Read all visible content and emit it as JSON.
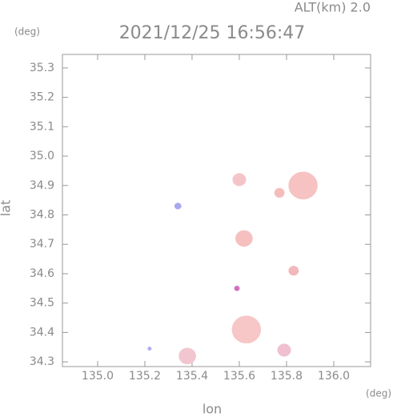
{
  "chart_data": {
    "type": "scatter",
    "title": "2021/12/25 16:56:47",
    "subtitle": "ALT(km) 2.0",
    "y_unit": "(deg)",
    "x_unit": "(deg)",
    "xlabel": "lon",
    "ylabel": "lat",
    "xlim": [
      134.851,
      136.156
    ],
    "ylim": [
      34.284,
      35.346
    ],
    "xticks": [
      {
        "value": 135,
        "label": "135.0"
      },
      135.2,
      135.4,
      135.6,
      135.8,
      {
        "value": 136,
        "label": "136.0"
      }
    ],
    "yticks": [
      34.3,
      34.4,
      34.5,
      34.6,
      34.7,
      34.8,
      34.9,
      {
        "value": 35,
        "label": "35.0"
      },
      35.1,
      35.2,
      35.3
    ],
    "x": [
      135.87,
      135.77,
      135.6,
      135.62,
      135.83,
      135.63,
      135.38,
      135.79,
      135.59,
      135.34,
      135.22
    ],
    "values": [
      34.9,
      34.875,
      34.92,
      34.72,
      34.61,
      34.41,
      34.32,
      34.34,
      34.55,
      34.83,
      34.345
    ],
    "sizes": [
      0.06,
      0.02,
      0.027,
      0.035,
      0.02,
      0.06,
      0.035,
      0.027,
      0.01,
      0.013,
      0.007
    ],
    "colors": [
      "#f7c2c2",
      "#f5bcbc",
      "#f5c4c8",
      "#f7c0c0",
      "#f3b8bc",
      "#f7c6c6",
      "#f2c6d0",
      "#f0c0d0",
      "#d070c0",
      "#a8a8f0",
      "#b0b0f0"
    ]
  }
}
